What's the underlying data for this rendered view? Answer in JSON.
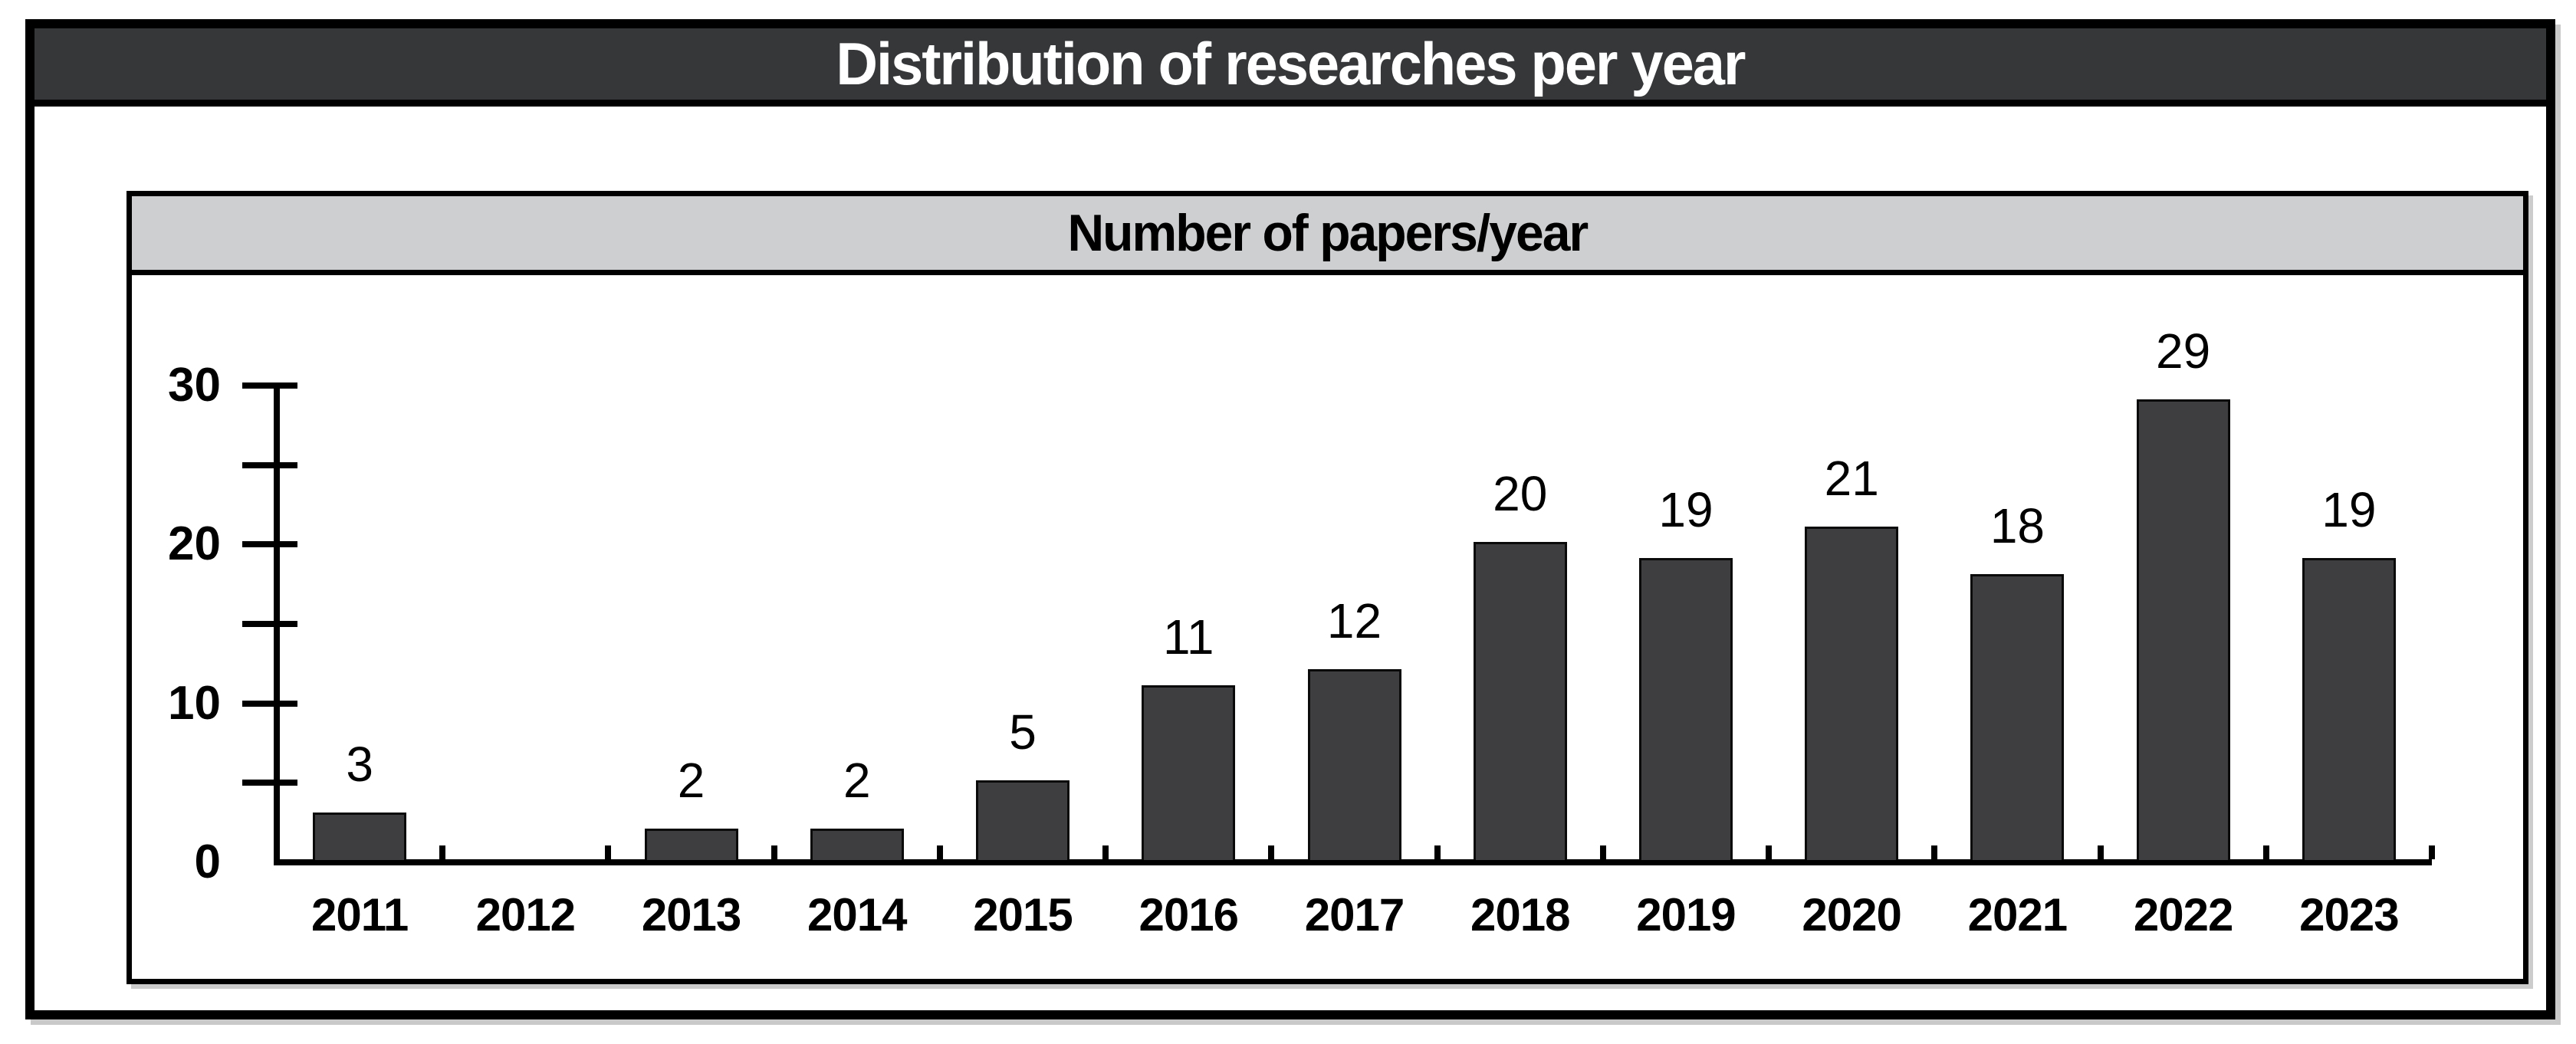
{
  "page": {
    "title": "Distribution of researches per year",
    "subtitle": "Number of papers/year"
  },
  "colors": {
    "title_bar_bg": "#353739",
    "title_text": "#ffffff",
    "subtitle_bg": "#cdcfd0",
    "subtitle_text": "#000000",
    "bar_fill": "#3e3e40",
    "bar_border": "#0a0a0a",
    "axis": "#000000"
  },
  "chart_data": {
    "type": "bar",
    "title": "Number of papers/year",
    "figure_title": "Distribution of researches per year",
    "xlabel": "",
    "ylabel": "",
    "categories": [
      "2011",
      "2012",
      "2013",
      "2014",
      "2015",
      "2016",
      "2017",
      "2018",
      "2019",
      "2020",
      "2021",
      "2022",
      "2023"
    ],
    "values": [
      3,
      0,
      2,
      2,
      5,
      11,
      12,
      20,
      19,
      21,
      18,
      29,
      19
    ],
    "ylim": [
      0,
      30
    ],
    "ytick_major": [
      0,
      10,
      20,
      30
    ],
    "ytick_minor_step": 5,
    "grid": false,
    "legend": null,
    "value_labels_shown": true,
    "zero_value_label_hidden": true
  }
}
